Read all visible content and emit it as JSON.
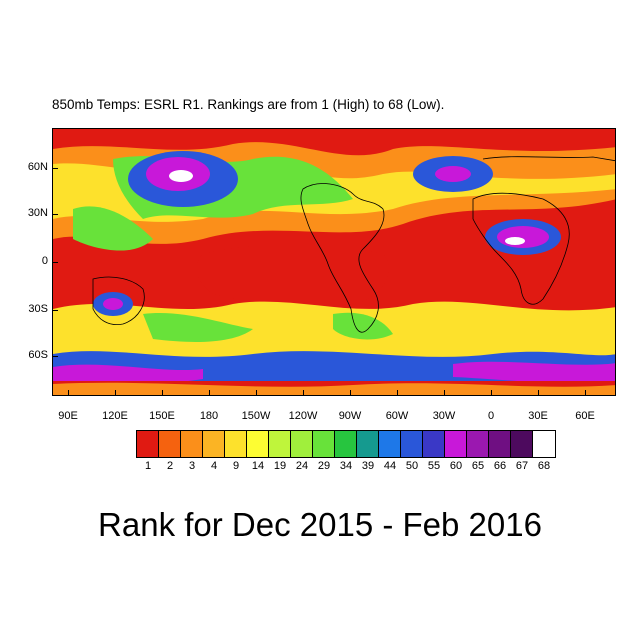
{
  "header": {
    "subtitle": "850mb Temps: ESRL R1. Rankings are from 1 (High) to 68 (Low)."
  },
  "map": {
    "lat_labels": [
      "60N",
      "30N",
      "0",
      "30S",
      "60S"
    ],
    "lon_labels": [
      "90E",
      "120E",
      "150E",
      "180",
      "150W",
      "120W",
      "90W",
      "60W",
      "30W",
      "0",
      "30E",
      "60E"
    ],
    "regions_note": "Rank field coloured by value"
  },
  "colorbar": {
    "labels": [
      "1",
      "2",
      "3",
      "4",
      "9",
      "14",
      "19",
      "24",
      "29",
      "34",
      "39",
      "44",
      "50",
      "55",
      "60",
      "65",
      "66",
      "67",
      "68"
    ],
    "colors": [
      "#e01a12",
      "#f5620f",
      "#fb8f1a",
      "#fbb424",
      "#fde12c",
      "#fdfd33",
      "#bff53b",
      "#a0ef3c",
      "#68e23a",
      "#27c53f",
      "#159a8f",
      "#1e78e8",
      "#2a57d9",
      "#3a38c6",
      "#c818d9",
      "#9b18b0",
      "#6f0f82",
      "#4d0a5e",
      "#ffffff"
    ]
  },
  "footer": {
    "title": "Rank for Dec 2015 - Feb 2016"
  }
}
